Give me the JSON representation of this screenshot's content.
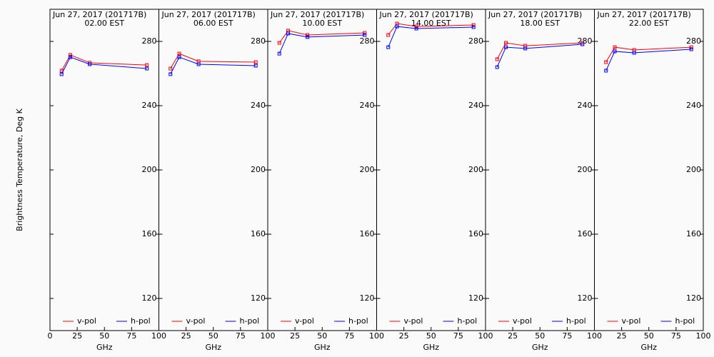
{
  "chart_data": [
    {
      "type": "line",
      "title": "Jun 27, 2017 (201717B)",
      "subtitle": "02.00 EST",
      "xlabel": "GHz",
      "ylabel": "Brightness Temperature, Deg K",
      "x": [
        10.65,
        18.7,
        36.5,
        89.0
      ],
      "series": [
        {
          "name": "v-pol",
          "color": "#ff0000",
          "values": [
            261.8,
            271.6,
            266.7,
            265.3
          ]
        },
        {
          "name": "h-pol",
          "color": "#0000ff",
          "values": [
            259.6,
            270.2,
            265.8,
            263.1
          ]
        }
      ],
      "xlim": [
        0,
        100
      ],
      "ylim": [
        100,
        300
      ],
      "xticks": [
        0,
        25,
        50,
        75,
        100
      ],
      "yticks": [
        120,
        160,
        200,
        240,
        280
      ]
    },
    {
      "type": "line",
      "title": "Jun 27, 2017 (201717B)",
      "subtitle": "06.00 EST",
      "xlabel": "GHz",
      "x": [
        10.65,
        18.7,
        36.5,
        89.0
      ],
      "series": [
        {
          "name": "v-pol",
          "color": "#ff0000",
          "values": [
            263.1,
            272.4,
            267.6,
            267.1
          ]
        },
        {
          "name": "h-pol",
          "color": "#0000ff",
          "values": [
            259.6,
            270.2,
            265.8,
            264.9
          ]
        }
      ],
      "xlim": [
        0,
        100
      ],
      "ylim": [
        100,
        300
      ],
      "xticks": [
        25,
        50,
        75,
        100
      ],
      "yticks": [
        120,
        160,
        200,
        240,
        280
      ]
    },
    {
      "type": "line",
      "title": "Jun 27, 2017 (201717B)",
      "subtitle": "10.00 EST",
      "xlabel": "GHz",
      "x": [
        10.65,
        18.7,
        36.5,
        89.0
      ],
      "series": [
        {
          "name": "v-pol",
          "color": "#ff0000",
          "values": [
            279.1,
            286.7,
            284.0,
            285.3
          ]
        },
        {
          "name": "h-pol",
          "color": "#0000ff",
          "values": [
            272.4,
            284.9,
            282.7,
            284.0
          ]
        }
      ],
      "xlim": [
        0,
        100
      ],
      "ylim": [
        100,
        300
      ],
      "xticks": [
        25,
        50,
        75,
        100
      ],
      "yticks": [
        120,
        160,
        200,
        240,
        280
      ]
    },
    {
      "type": "line",
      "title": "Jun 27, 2017 (201717B)",
      "subtitle": "14.00 EST",
      "xlabel": "GHz",
      "x": [
        10.65,
        18.7,
        36.5,
        89.0
      ],
      "series": [
        {
          "name": "v-pol",
          "color": "#ff0000",
          "values": [
            284.0,
            291.1,
            289.3,
            290.2
          ]
        },
        {
          "name": "h-pol",
          "color": "#0000ff",
          "values": [
            276.4,
            289.3,
            288.0,
            288.9
          ]
        }
      ],
      "xlim": [
        0,
        100
      ],
      "ylim": [
        100,
        300
      ],
      "xticks": [
        25,
        50,
        75,
        100
      ],
      "yticks": [
        120,
        160,
        200,
        240,
        280
      ]
    },
    {
      "type": "line",
      "title": "Jun 27, 2017 (201717B)",
      "subtitle": "18.00 EST",
      "xlabel": "GHz",
      "x": [
        10.65,
        18.7,
        36.5,
        89.0
      ],
      "series": [
        {
          "name": "v-pol",
          "color": "#ff0000",
          "values": [
            268.9,
            279.1,
            277.3,
            279.1
          ]
        },
        {
          "name": "h-pol",
          "color": "#0000ff",
          "values": [
            264.0,
            276.4,
            275.6,
            278.2
          ]
        }
      ],
      "xlim": [
        0,
        100
      ],
      "ylim": [
        100,
        300
      ],
      "xticks": [
        25,
        50,
        75,
        100
      ],
      "yticks": [
        120,
        160,
        200,
        240,
        280
      ]
    },
    {
      "type": "line",
      "title": "Jun 27, 2017 (201717B)",
      "subtitle": "22.00 EST",
      "xlabel": "GHz",
      "x": [
        10.65,
        18.7,
        36.5,
        89.0
      ],
      "series": [
        {
          "name": "v-pol",
          "color": "#ff0000",
          "values": [
            267.1,
            276.4,
            274.7,
            276.4
          ]
        },
        {
          "name": "h-pol",
          "color": "#0000ff",
          "values": [
            261.8,
            273.8,
            272.9,
            275.1
          ]
        }
      ],
      "xlim": [
        0,
        100
      ],
      "ylim": [
        100,
        300
      ],
      "xticks": [
        25,
        50,
        75,
        100
      ],
      "yticks": [
        120,
        160,
        200,
        240,
        280
      ]
    }
  ]
}
